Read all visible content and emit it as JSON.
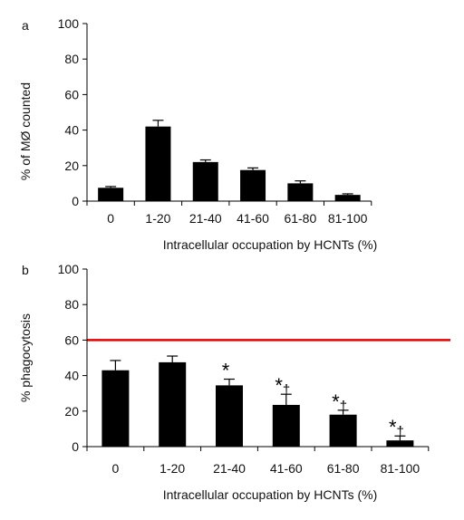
{
  "chart_data": [
    {
      "panel_label": "a",
      "type": "bar",
      "categories": [
        "0",
        "1-20",
        "21-40",
        "41-60",
        "61-80",
        "81-100"
      ],
      "values": [
        7.5,
        42,
        22,
        17.5,
        10,
        3.5
      ],
      "errors": [
        0.7,
        3.5,
        1.2,
        1.2,
        1.4,
        0.6
      ],
      "xlabel": "Intracellular occupation by HCNTs (%)",
      "ylabel": "% of MØ counted",
      "ylim": [
        0,
        100
      ],
      "yticks": [
        "0",
        "20",
        "40",
        "60",
        "80",
        "100"
      ],
      "grid": false,
      "bar_color": "#000000"
    },
    {
      "panel_label": "b",
      "type": "bar",
      "categories": [
        "0",
        "1-20",
        "21-40",
        "41-60",
        "61-80",
        "81-100"
      ],
      "values": [
        43,
        47.5,
        34.5,
        23.5,
        18,
        3.5
      ],
      "errors": [
        5.5,
        3.5,
        3.5,
        6,
        2.5,
        2.5
      ],
      "annotations": [
        {
          "category": "21-40",
          "marks": "*"
        },
        {
          "category": "41-60",
          "marks": "*†"
        },
        {
          "category": "61-80",
          "marks": "*†"
        },
        {
          "category": "81-100",
          "marks": "*†"
        }
      ],
      "reference_line": {
        "y": 60,
        "color": "#e60000"
      },
      "xlabel": "Intracellular occupation by HCNTs (%)",
      "ylabel": "% phagocytosis",
      "ylim": [
        0,
        100
      ],
      "yticks": [
        "0",
        "20",
        "40",
        "60",
        "80",
        "100"
      ],
      "grid": false,
      "bar_color": "#000000"
    }
  ]
}
